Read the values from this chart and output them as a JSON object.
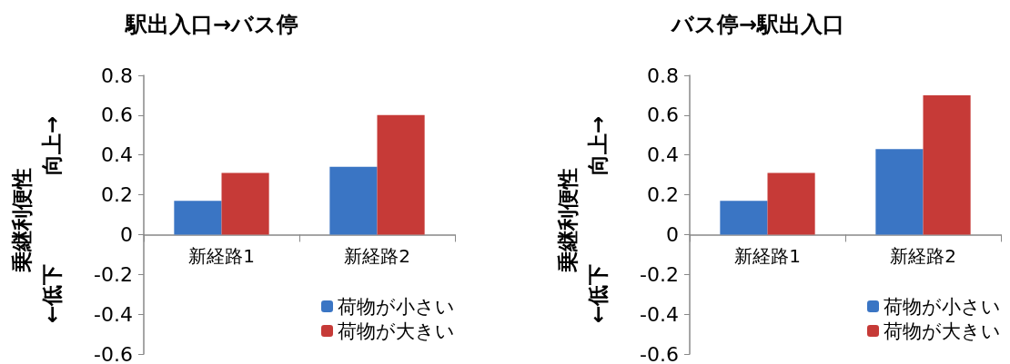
{
  "chart_data": [
    {
      "type": "bar",
      "title": "駅出入口→バス停",
      "ylabel": "乗継利便性",
      "annotations": [
        "向上→",
        "←低下"
      ],
      "categories": [
        "新経路1",
        "新経路2"
      ],
      "series": [
        {
          "name": "荷物が小さい",
          "color": "#3a75c4",
          "values": [
            0.17,
            0.34
          ]
        },
        {
          "name": "荷物が大きい",
          "color": "#c63a37",
          "values": [
            0.31,
            0.6
          ]
        }
      ],
      "ylim": [
        -0.6,
        0.8
      ],
      "yticks": [
        -0.6,
        -0.4,
        -0.2,
        0,
        0.2,
        0.4,
        0.6,
        0.8
      ],
      "grid": false,
      "legend": "bottom right"
    },
    {
      "type": "bar",
      "title": "バス停→駅出入口",
      "ylabel": "乗継利便性",
      "annotations": [
        "向上→",
        "←低下"
      ],
      "categories": [
        "新経路1",
        "新経路2"
      ],
      "series": [
        {
          "name": "荷物が小さい",
          "color": "#3a75c4",
          "values": [
            0.17,
            0.43
          ]
        },
        {
          "name": "荷物が大きい",
          "color": "#c63a37",
          "values": [
            0.31,
            0.7
          ]
        }
      ],
      "ylim": [
        -0.6,
        0.8
      ],
      "yticks": [
        -0.6,
        -0.4,
        -0.2,
        0,
        0.2,
        0.4,
        0.6,
        0.8
      ],
      "grid": false,
      "legend": "bottom right"
    }
  ]
}
